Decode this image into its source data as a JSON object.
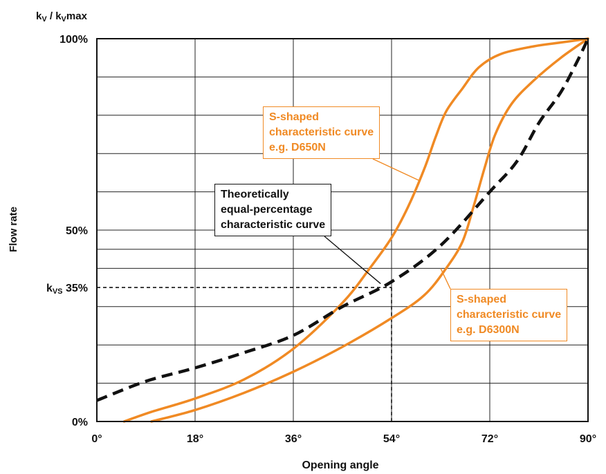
{
  "chart_data": {
    "type": "line",
    "ylabel_top": "kV / kVmax",
    "ylabel_top_parts": {
      "k1": "k",
      "s1": "V",
      "slash": " / ",
      "k2": "k",
      "s2": "V",
      "tail": "max"
    },
    "ylabel": "Flow rate",
    "xlabel": "Opening angle",
    "xlim": [
      0,
      90
    ],
    "ylim": [
      0,
      100
    ],
    "x_ticks": [
      0,
      18,
      36,
      54,
      72,
      90
    ],
    "x_tick_labels": [
      "0°",
      "18°",
      "36°",
      "54°",
      "72°",
      "90°"
    ],
    "y_grid": [
      0,
      10,
      20,
      30,
      40,
      45,
      50,
      60,
      70,
      80,
      90,
      100
    ],
    "y_tick_labels": [
      {
        "y": 100,
        "text": "100%"
      },
      {
        "y": 50,
        "text": "50%"
      },
      {
        "y": 35,
        "text": "35%",
        "prefix_k": "k",
        "prefix_sub": "VS"
      },
      {
        "y": 0,
        "text": "0%"
      }
    ],
    "kvs_marker": {
      "x": 54,
      "y": 35
    },
    "series": [
      {
        "key": "d650n",
        "color": "#f08a24",
        "style": "solid",
        "points": [
          [
            5,
            0
          ],
          [
            10,
            2.5
          ],
          [
            18,
            6
          ],
          [
            27,
            11
          ],
          [
            36,
            19
          ],
          [
            45,
            31
          ],
          [
            50,
            40
          ],
          [
            54,
            48
          ],
          [
            57,
            56
          ],
          [
            60,
            66
          ],
          [
            62,
            74
          ],
          [
            64,
            81
          ],
          [
            67,
            87
          ],
          [
            70,
            92.5
          ],
          [
            74,
            96
          ],
          [
            80,
            98
          ],
          [
            85,
            99
          ],
          [
            90,
            100
          ]
        ]
      },
      {
        "key": "d6300n",
        "color": "#f08a24",
        "style": "solid",
        "points": [
          [
            10,
            0
          ],
          [
            18,
            3
          ],
          [
            27,
            7.5
          ],
          [
            36,
            13
          ],
          [
            45,
            19.5
          ],
          [
            54,
            27
          ],
          [
            60,
            33
          ],
          [
            64,
            40
          ],
          [
            67,
            47
          ],
          [
            69,
            56
          ],
          [
            71,
            66
          ],
          [
            73,
            75
          ],
          [
            76,
            83
          ],
          [
            80,
            89
          ],
          [
            85,
            95
          ],
          [
            90,
            100
          ]
        ]
      },
      {
        "key": "theoretical",
        "color": "#111111",
        "style": "dashed",
        "points": [
          [
            0,
            5.5
          ],
          [
            9,
            10.5
          ],
          [
            18,
            14
          ],
          [
            27,
            18
          ],
          [
            36,
            22.5
          ],
          [
            45,
            30
          ],
          [
            54,
            36.5
          ],
          [
            63,
            46
          ],
          [
            72,
            60
          ],
          [
            77,
            68
          ],
          [
            81,
            78
          ],
          [
            85,
            86
          ],
          [
            88,
            94
          ],
          [
            90,
            100
          ]
        ]
      }
    ],
    "annotations": [
      {
        "key": "d650n",
        "lines": [
          "S-shaped",
          "characteristic curve",
          "e.g. D650N"
        ],
        "color": "#f08a24",
        "pointer_to": [
          59,
          63
        ]
      },
      {
        "key": "theoretical",
        "lines": [
          "Theoretically",
          "equal-percentage",
          "characteristic curve"
        ],
        "color": "#111111",
        "pointer_to": [
          52,
          36
        ]
      },
      {
        "key": "d6300n",
        "lines": [
          "S-shaped",
          "characteristic curve",
          "e.g. D6300N"
        ],
        "color": "#f08a24",
        "pointer_to": [
          63,
          40
        ]
      }
    ]
  }
}
